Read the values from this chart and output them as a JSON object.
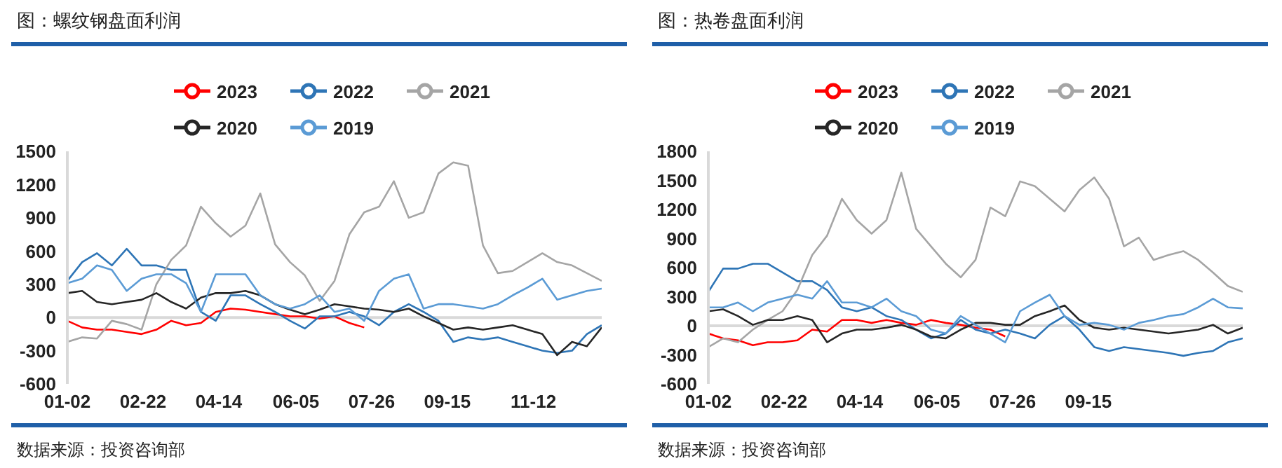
{
  "chart_data": [
    {
      "type": "line",
      "title": "图：螺纹钢盘面利润",
      "legend": "top",
      "annotations": [
        "数据来源：投资咨询部"
      ],
      "x": [
        "--01-02",
        "--01-12",
        "--01-22",
        "--02-01",
        "--02-11",
        "--02-21",
        "--03-03",
        "--03-13",
        "--03-23",
        "--04-02",
        "--04-12",
        "--04-22",
        "--05-02",
        "--05-12",
        "--05-22",
        "--06-01",
        "--06-11",
        "--06-21",
        "--07-01",
        "--07-11",
        "--07-21",
        "--07-31",
        "--08-10",
        "--08-20",
        "--08-30",
        "--09-09",
        "--09-19",
        "--09-29",
        "--10-09",
        "--10-19",
        "--10-29",
        "--11-08",
        "--11-18",
        "--11-28",
        "--12-08",
        "--12-18",
        "--12-28"
      ],
      "xlim": [
        "--01-02",
        "--12-28"
      ],
      "xticks": [
        {
          "value": "--01-02",
          "label": "01-02"
        },
        {
          "value": "--02-22",
          "label": "02-22"
        },
        {
          "value": "--04-14",
          "label": "04-14"
        },
        {
          "value": "--06-05",
          "label": "06-05"
        },
        {
          "value": "--07-26",
          "label": "07-26"
        },
        {
          "value": "--09-15",
          "label": "09-15"
        },
        {
          "value": "--11-12",
          "label": "11-12"
        }
      ],
      "ylim": [
        -600,
        1500
      ],
      "yticks": [
        -600,
        -300,
        0,
        300,
        600,
        900,
        1200,
        1500
      ],
      "ref_lines": [
        {
          "axis": "y",
          "value": 0,
          "color": "#d9d9d9"
        }
      ],
      "series": [
        {
          "name": "2023",
          "color": "#ff0000",
          "values": [
            -30,
            -90,
            -110,
            -110,
            -130,
            -150,
            -110,
            -30,
            -70,
            -50,
            50,
            80,
            70,
            50,
            30,
            10,
            10,
            -10,
            10,
            -50,
            -90,
            null,
            null,
            null,
            null,
            null,
            null,
            null,
            null,
            null,
            null,
            null,
            null,
            null,
            null,
            null,
            null
          ]
        },
        {
          "name": "2022",
          "color": "#2e75b6",
          "values": [
            330,
            500,
            580,
            470,
            620,
            470,
            470,
            430,
            430,
            50,
            -30,
            200,
            200,
            120,
            50,
            -30,
            -100,
            10,
            10,
            50,
            10,
            -70,
            50,
            120,
            50,
            -30,
            -220,
            -180,
            -200,
            -180,
            -220,
            -260,
            -300,
            -320,
            -300,
            -150,
            -70
          ]
        },
        {
          "name": "2021",
          "color": "#a5a5a5",
          "values": [
            -220,
            -180,
            -190,
            -30,
            -60,
            -110,
            300,
            520,
            650,
            1000,
            850,
            730,
            830,
            1120,
            660,
            500,
            380,
            150,
            330,
            750,
            950,
            1000,
            1230,
            900,
            950,
            1300,
            1400,
            1370,
            650,
            400,
            420,
            500,
            580,
            500,
            470,
            400,
            330
          ]
        },
        {
          "name": "2020",
          "color": "#262626",
          "values": [
            220,
            240,
            140,
            120,
            140,
            160,
            220,
            140,
            80,
            180,
            220,
            220,
            240,
            200,
            120,
            70,
            30,
            70,
            120,
            100,
            80,
            70,
            50,
            80,
            10,
            -50,
            -110,
            -90,
            -110,
            -90,
            -70,
            -110,
            -150,
            -340,
            -220,
            -260,
            -90
          ]
        },
        {
          "name": "2019",
          "color": "#5b9bd5",
          "values": [
            310,
            350,
            470,
            430,
            240,
            350,
            390,
            390,
            310,
            50,
            390,
            390,
            390,
            200,
            120,
            80,
            120,
            200,
            50,
            80,
            -30,
            240,
            350,
            390,
            80,
            120,
            120,
            100,
            80,
            120,
            200,
            270,
            350,
            160,
            200,
            240,
            260
          ]
        }
      ]
    },
    {
      "type": "line",
      "title": "图：热卷盘面利润",
      "legend": "top",
      "annotations": [
        "数据来源：投资咨询部"
      ],
      "x": [
        "--01-02",
        "--01-12",
        "--01-22",
        "--02-01",
        "--02-11",
        "--02-21",
        "--03-03",
        "--03-13",
        "--03-23",
        "--04-02",
        "--04-12",
        "--04-22",
        "--05-02",
        "--05-12",
        "--05-22",
        "--06-01",
        "--06-11",
        "--06-21",
        "--07-01",
        "--07-11",
        "--07-21",
        "--07-31",
        "--08-10",
        "--08-20",
        "--08-30",
        "--09-09",
        "--09-19",
        "--09-29",
        "--10-09",
        "--10-19",
        "--10-29",
        "--11-08",
        "--11-18",
        "--11-28",
        "--12-08",
        "--12-18",
        "--12-28"
      ],
      "xlim": [
        "--01-02",
        "--12-28"
      ],
      "xticks": [
        {
          "value": "--01-02",
          "label": "01-02"
        },
        {
          "value": "--02-22",
          "label": "02-22"
        },
        {
          "value": "--04-14",
          "label": "04-14"
        },
        {
          "value": "--06-05",
          "label": "06-05"
        },
        {
          "value": "--07-26",
          "label": "07-26"
        },
        {
          "value": "--09-15",
          "label": "09-15"
        }
      ],
      "ylim": [
        -600,
        1800
      ],
      "yticks": [
        -600,
        -300,
        0,
        300,
        600,
        900,
        1200,
        1500,
        1800
      ],
      "ref_lines": [
        {
          "axis": "y",
          "value": 0,
          "color": "#d9d9d9"
        }
      ],
      "series": [
        {
          "name": "2023",
          "color": "#ff0000",
          "values": [
            -80,
            -130,
            -150,
            -200,
            -170,
            -170,
            -150,
            -40,
            -60,
            60,
            60,
            30,
            60,
            30,
            10,
            60,
            30,
            10,
            -20,
            -40,
            -110,
            null,
            null,
            null,
            null,
            null,
            null,
            null,
            null,
            null,
            null,
            null,
            null,
            null,
            null,
            null,
            null
          ]
        },
        {
          "name": "2022",
          "color": "#2e75b6",
          "values": [
            350,
            590,
            590,
            640,
            640,
            550,
            460,
            460,
            370,
            190,
            150,
            190,
            100,
            60,
            -40,
            -130,
            -80,
            60,
            -40,
            -80,
            -40,
            -80,
            -130,
            10,
            100,
            -40,
            -220,
            -260,
            -220,
            -240,
            -260,
            -280,
            -310,
            -280,
            -260,
            -170,
            -130
          ]
        },
        {
          "name": "2021",
          "color": "#a5a5a5",
          "values": [
            -220,
            -130,
            -170,
            -40,
            60,
            150,
            370,
            730,
            930,
            1310,
            1090,
            950,
            1090,
            1580,
            1000,
            820,
            640,
            500,
            680,
            1220,
            1130,
            1490,
            1440,
            1310,
            1180,
            1400,
            1530,
            1310,
            820,
            910,
            680,
            730,
            770,
            680,
            550,
            410,
            350
          ]
        },
        {
          "name": "2020",
          "color": "#262626",
          "values": [
            150,
            170,
            100,
            10,
            60,
            60,
            100,
            60,
            -170,
            -80,
            -40,
            -40,
            -20,
            10,
            -40,
            -110,
            -130,
            -40,
            30,
            30,
            10,
            10,
            100,
            150,
            210,
            60,
            -20,
            -40,
            -20,
            -40,
            -60,
            -80,
            -60,
            -40,
            10,
            -80,
            -20
          ]
        },
        {
          "name": "2019",
          "color": "#5b9bd5",
          "values": [
            190,
            190,
            240,
            150,
            240,
            280,
            320,
            280,
            460,
            240,
            240,
            190,
            280,
            150,
            100,
            -40,
            -80,
            100,
            10,
            -80,
            -170,
            150,
            240,
            320,
            100,
            10,
            30,
            10,
            -40,
            30,
            60,
            100,
            120,
            190,
            280,
            190,
            180
          ]
        }
      ]
    }
  ]
}
